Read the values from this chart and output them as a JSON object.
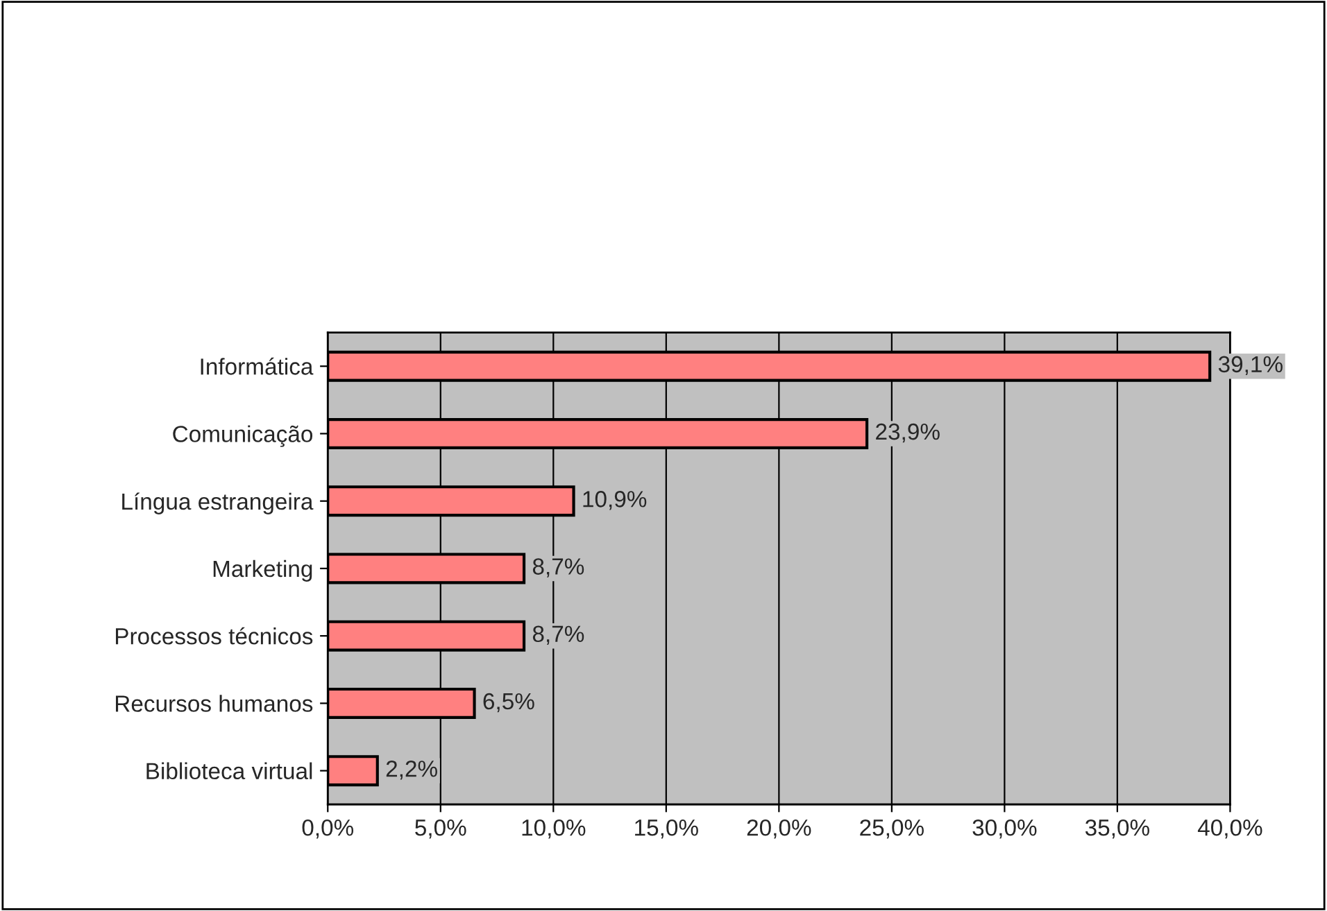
{
  "chart_data": {
    "type": "bar",
    "orientation": "horizontal",
    "categories": [
      "Informática",
      "Comunicação",
      "Língua estrangeira",
      "Marketing",
      "Processos técnicos",
      "Recursos humanos",
      "Biblioteca virtual"
    ],
    "values": [
      39.1,
      23.9,
      10.9,
      8.7,
      8.7,
      6.5,
      2.2
    ],
    "color": "#ff8080",
    "value_labels": [
      "39,1%",
      "23,9%",
      "10,9%",
      "8,7%",
      "8,7%",
      "6,5%",
      "2,2%"
    ],
    "xlim": [
      0,
      40
    ],
    "xticks": [
      {
        "value": 0,
        "label": "0,0%"
      },
      {
        "value": 5,
        "label": "5,0%"
      },
      {
        "value": 10,
        "label": "10,0%"
      },
      {
        "value": 15,
        "label": "15,0%"
      },
      {
        "value": 20,
        "label": "20,0%"
      },
      {
        "value": 25,
        "label": "25,0%"
      },
      {
        "value": 30,
        "label": "30,0%"
      },
      {
        "value": 35,
        "label": "35,0%"
      },
      {
        "value": 40,
        "label": "40,0%"
      }
    ],
    "grid": "x",
    "legend": false
  }
}
